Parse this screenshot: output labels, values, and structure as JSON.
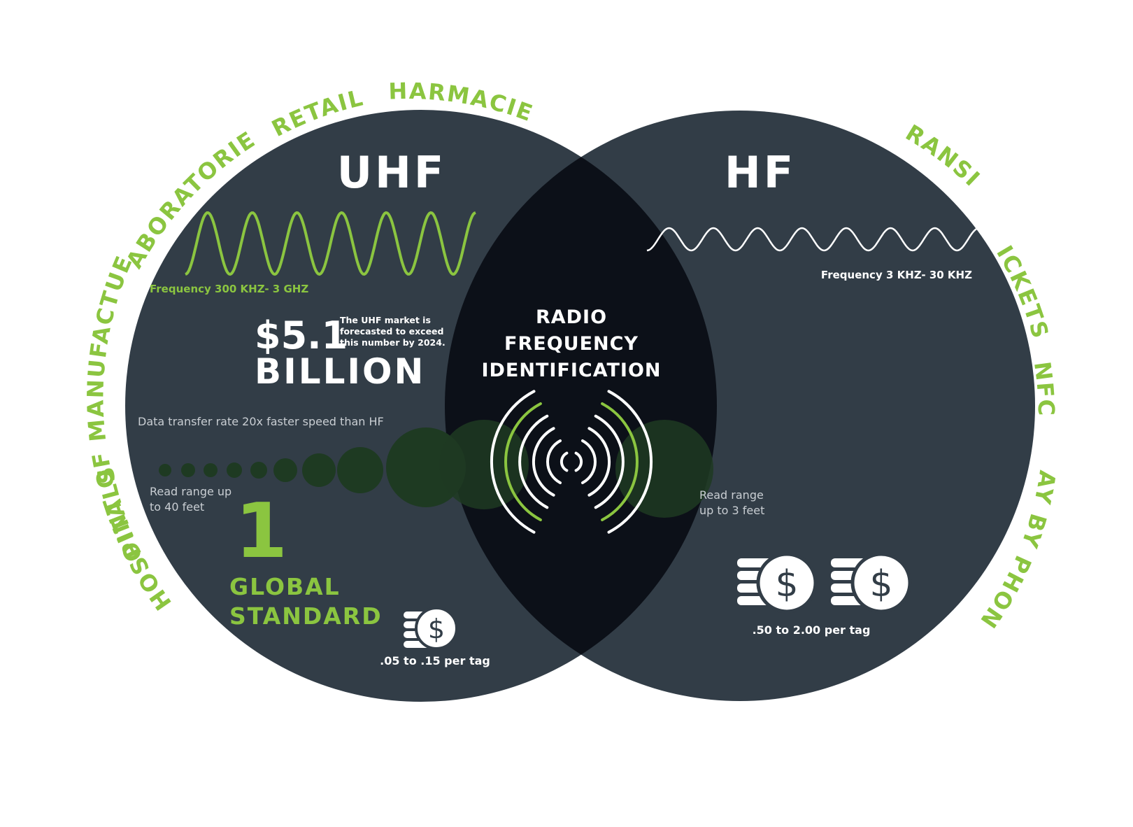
{
  "colors": {
    "circle": "#323d47",
    "overlap": "#0c1018",
    "green": "#8bc540",
    "dark_green": "#1e3a22",
    "white": "#ffffff",
    "background": "#ffffff"
  },
  "uhf": {
    "title": "UHF",
    "frequency": "Frequency 300 KHZ- 3 GHZ",
    "market_value": "$5.1",
    "market_unit": "BILLION",
    "market_note": [
      "The UHF market is",
      "forecasted to exceed",
      "this number by 2024."
    ],
    "transfer_rate": "Data transfer rate 20x faster speed than HF",
    "read_range": [
      "Read range up",
      "to 40 feet"
    ],
    "standard_number": "1",
    "standard_label": [
      "GLOBAL",
      "STANDARD"
    ],
    "price": ".05 to .15 per tag",
    "price_icon": "coin-stack-dollar-icon",
    "applications": [
      "HOSPITALS",
      "POINT OF MANUFACTUER",
      "LABORATORIES",
      "RETAIL",
      "PHARMACIES"
    ]
  },
  "hf": {
    "title": "HF",
    "frequency": "Frequency 3 KHZ- 30 KHZ",
    "read_range": [
      "Read range",
      "up to 3 feet"
    ],
    "price": ".50 to 2.00 per tag",
    "price_icon": "coin-stack-dollar-icon",
    "applications": [
      "TRANSIT",
      "TICKETS",
      "NFC",
      "PAY BY PHONE"
    ]
  },
  "center": {
    "title": [
      "RADIO",
      "FREQUENCY",
      "IDENTIFICATION"
    ],
    "icon": "rfid-signal-icon"
  }
}
